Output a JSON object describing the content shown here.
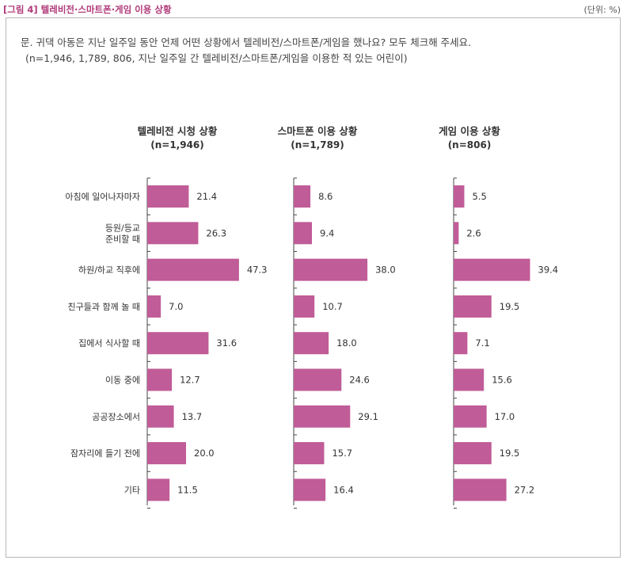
{
  "figure_title": "[그림 4] 텔레비전·스마트폰·게임 이용 상황",
  "unit_note": "(단위: %)",
  "question": "문. 귀댁 아동은 지난 일주일 동안 언제 어떤 상황에서 텔레비전/스마트폰/게임을 했나요? 모두 체크해 주세요.",
  "question_note": "(n=1,946, 1,789, 806, 지난 일주일 간 텔레비전/스마트폰/게임을 이용한 적 있는 어린이)",
  "colors": {
    "bar": "#c05c97",
    "axis": "#444444",
    "title_accent": "#b03a7a"
  },
  "chart_data": {
    "type": "bar",
    "orientation": "horizontal",
    "categories": [
      "아침에 일어나자마자",
      "등원/등교 준비할 때",
      "하원/하교 직후에",
      "친구들과 함께 놀 때",
      "집에서 식사할 때",
      "이동 중에",
      "공공장소에서",
      "잠자리에 들기 전에",
      "기타"
    ],
    "category_lines": [
      [
        "아침에 일어나자마자"
      ],
      [
        "등원/등교",
        "준비할 때"
      ],
      [
        "하원/하교 직후에"
      ],
      [
        "친구들과 함께 놀 때"
      ],
      [
        "집에서 식사할 때"
      ],
      [
        "이동 중에"
      ],
      [
        "공공장소에서"
      ],
      [
        "잠자리에 들기 전에"
      ],
      [
        "기타"
      ]
    ],
    "series": [
      {
        "name": "텔레비전 시청 상황",
        "n": "(n=1,946)",
        "values": [
          21.4,
          26.3,
          47.3,
          7.0,
          31.6,
          12.7,
          13.7,
          20.0,
          11.5
        ]
      },
      {
        "name": "스마트폰 이용 상황",
        "n": "(n=1,789)",
        "values": [
          8.6,
          9.4,
          38.0,
          10.7,
          18.0,
          24.6,
          29.1,
          15.7,
          16.4
        ]
      },
      {
        "name": "게임 이용 상황",
        "n": "(n=806)",
        "values": [
          5.5,
          2.6,
          39.4,
          19.5,
          7.1,
          15.6,
          17.0,
          19.5,
          27.2
        ]
      }
    ]
  }
}
